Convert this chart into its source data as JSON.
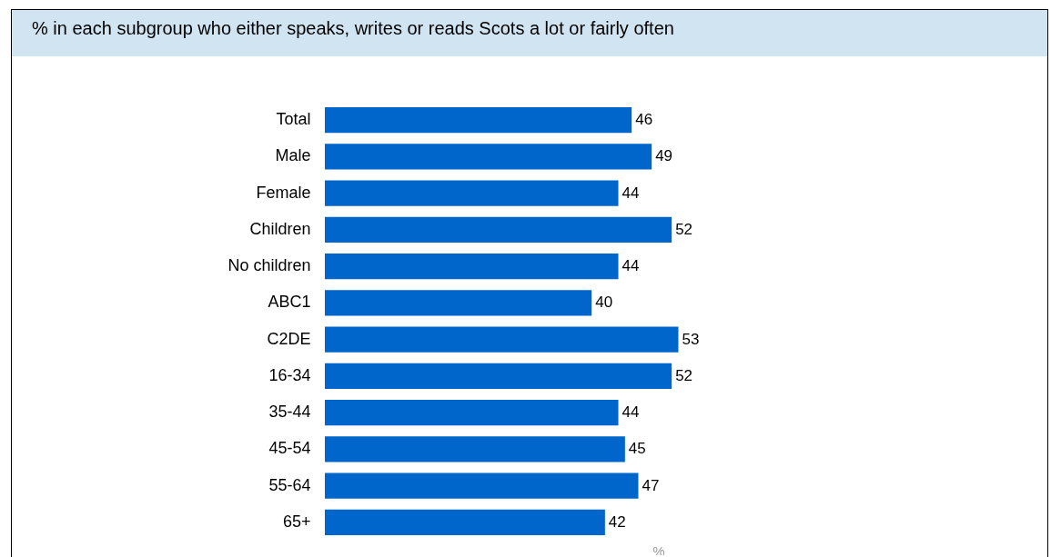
{
  "chart_data": {
    "type": "bar",
    "orientation": "horizontal",
    "title": "% in each subgroup who either speaks, writes or reads Scots a lot or fairly often",
    "xlabel": "%",
    "categories": [
      "Total",
      "Male",
      "Female",
      "Children",
      "No children",
      "ABC1",
      "C2DE",
      "16-34",
      "35-44",
      "45-54",
      "55-64",
      "65+"
    ],
    "values": [
      46,
      49,
      44,
      52,
      44,
      40,
      53,
      52,
      44,
      45,
      47,
      42
    ],
    "color": "#0066cc",
    "data_labels": true,
    "tick_labels": "y"
  }
}
